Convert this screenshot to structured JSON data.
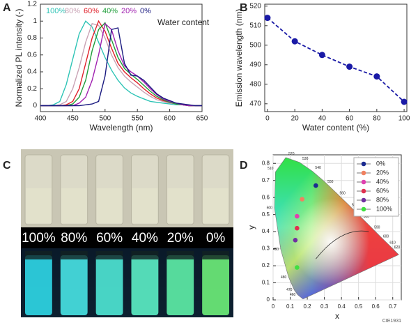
{
  "panels": [
    "A",
    "B",
    "C",
    "D"
  ],
  "chart_data": [
    {
      "type": "line",
      "xlabel": "Wavelength (nm)",
      "ylabel": "Normalized PL intensity (-)",
      "annotation": "Water content",
      "x": [
        400,
        410,
        420,
        430,
        440,
        450,
        460,
        470,
        480,
        490,
        500,
        510,
        520,
        530,
        540,
        550,
        560,
        570,
        580,
        590,
        600,
        610,
        620,
        630,
        640,
        650
      ],
      "series": [
        {
          "name": "100%",
          "color": "#2ec4b6",
          "values": [
            0,
            0,
            0.01,
            0.05,
            0.25,
            0.55,
            0.85,
            1.0,
            0.93,
            0.75,
            0.57,
            0.42,
            0.3,
            0.21,
            0.15,
            0.11,
            0.08,
            0.05,
            0.04,
            0.03,
            0.02,
            0.01,
            0.01,
            0,
            0,
            0
          ]
        },
        {
          "name": "80%",
          "color": "#c9a3b5",
          "values": [
            0,
            0,
            0,
            0.01,
            0.05,
            0.2,
            0.45,
            0.75,
            0.97,
            0.95,
            0.8,
            0.6,
            0.45,
            0.35,
            0.28,
            0.22,
            0.16,
            0.11,
            0.07,
            0.05,
            0.03,
            0.02,
            0.01,
            0,
            0,
            0
          ]
        },
        {
          "name": "60%",
          "color": "#e0202a",
          "values": [
            0,
            0,
            0,
            0,
            0.01,
            0.05,
            0.2,
            0.5,
            0.8,
            1.0,
            0.88,
            0.68,
            0.5,
            0.4,
            0.33,
            0.27,
            0.2,
            0.14,
            0.09,
            0.06,
            0.04,
            0.02,
            0.01,
            0,
            0,
            0
          ]
        },
        {
          "name": "40%",
          "color": "#1f9e3a",
          "values": [
            0,
            0,
            0,
            0,
            0,
            0.02,
            0.1,
            0.3,
            0.65,
            0.9,
            0.98,
            0.78,
            0.57,
            0.44,
            0.37,
            0.31,
            0.24,
            0.17,
            0.11,
            0.07,
            0.04,
            0.02,
            0.01,
            0,
            0,
            0
          ]
        },
        {
          "name": "20%",
          "color": "#a020b0",
          "values": [
            0,
            0,
            0,
            0,
            0,
            0,
            0.03,
            0.1,
            0.3,
            0.6,
            0.97,
            0.9,
            0.65,
            0.47,
            0.4,
            0.35,
            0.28,
            0.2,
            0.13,
            0.08,
            0.05,
            0.03,
            0.01,
            0,
            0,
            0
          ]
        },
        {
          "name": "0%",
          "color": "#1a1a80",
          "values": [
            0,
            0,
            0,
            0,
            0,
            0,
            0,
            0.01,
            0.02,
            0.05,
            0.35,
            0.9,
            0.92,
            0.5,
            0.36,
            0.35,
            0.3,
            0.22,
            0.14,
            0.09,
            0.06,
            0.03,
            0.02,
            0.01,
            0,
            0
          ]
        }
      ],
      "xlim": [
        400,
        650
      ],
      "ylim": [
        -0.07,
        1.2
      ],
      "xticks": [
        400,
        450,
        500,
        550,
        600,
        650
      ],
      "yticks": [
        0,
        0.2,
        0.4,
        0.6,
        0.8,
        1,
        1.2
      ]
    },
    {
      "type": "line",
      "xlabel": "Water content (%)",
      "ylabel": "Emission wavelength (nm)",
      "x": [
        0,
        20,
        40,
        60,
        80,
        100
      ],
      "values": [
        514,
        502,
        495,
        489,
        484,
        471
      ],
      "color": "#1a1aa6",
      "markers": true,
      "dashed": true,
      "xlim": [
        -2,
        102
      ],
      "ylim": [
        466,
        521
      ],
      "xticks": [
        0,
        20,
        40,
        60,
        80,
        100
      ],
      "yticks": [
        470,
        480,
        490,
        500,
        510,
        520
      ]
    },
    {
      "type": "scatter",
      "xlabel": "x",
      "ylabel": "y",
      "note": "CIE1931",
      "grid": true,
      "series": [
        {
          "name": "0%",
          "color": "#1a2a90",
          "x": [
            0.25
          ],
          "y": [
            0.67
          ]
        },
        {
          "name": "20%",
          "color": "#f08060",
          "x": [
            0.17
          ],
          "y": [
            0.59
          ]
        },
        {
          "name": "40%",
          "color": "#e040b0",
          "x": [
            0.14
          ],
          "y": [
            0.49
          ]
        },
        {
          "name": "60%",
          "color": "#e03050",
          "x": [
            0.14
          ],
          "y": [
            0.42
          ]
        },
        {
          "name": "80%",
          "color": "#7030a0",
          "x": [
            0.13
          ],
          "y": [
            0.35
          ]
        },
        {
          "name": "100%",
          "color": "#40e040",
          "x": [
            0.14
          ],
          "y": [
            0.19
          ]
        }
      ],
      "locus_labels": [
        "460",
        "470",
        "480",
        "490",
        "500",
        "510",
        "520",
        "530",
        "540",
        "550",
        "560",
        "570",
        "580",
        "590",
        "600",
        "610",
        "620"
      ],
      "xlim": [
        0,
        0.75
      ],
      "ylim": [
        0,
        0.85
      ],
      "xticks": [
        0,
        0.1,
        0.2,
        0.3,
        0.4,
        0.5,
        0.6,
        0.7
      ],
      "yticks": [
        0,
        0.1,
        0.2,
        0.3,
        0.4,
        0.5,
        0.6,
        0.7,
        0.8
      ]
    }
  ],
  "photo": {
    "labels": [
      "100%",
      "80%",
      "60%",
      "40%",
      "20%",
      "0%"
    ]
  }
}
